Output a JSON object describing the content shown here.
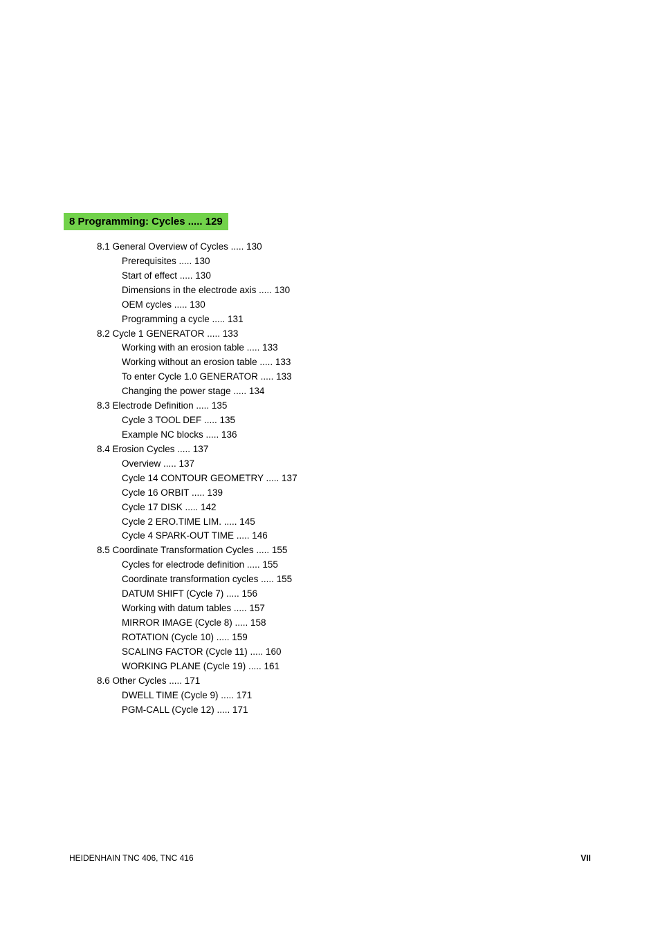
{
  "chapter": {
    "heading": "8 Programming: Cycles ..... 129",
    "heading_bg": "#72d24b",
    "heading_font_weight": "bold",
    "heading_font_size": 15
  },
  "body_font_size": 13.5,
  "body_color": "#000000",
  "background_color": "#ffffff",
  "sections": [
    {
      "title": "8.1 General Overview of Cycles ..... 130",
      "items": [
        "Prerequisites ..... 130",
        "Start of effect ..... 130",
        "Dimensions in the electrode axis ..... 130",
        "OEM cycles ..... 130",
        "Programming a cycle ..... 131"
      ]
    },
    {
      "title": "8.2 Cycle 1 GENERATOR ..... 133",
      "items": [
        "Working with an erosion table ..... 133",
        "Working without an erosion table ..... 133",
        "To enter Cycle 1.0 GENERATOR ..... 133",
        "Changing the power stage ..... 134"
      ]
    },
    {
      "title": "8.3 Electrode Definition ..... 135",
      "items": [
        "Cycle 3 TOOL DEF ..... 135",
        "Example NC blocks ..... 136"
      ]
    },
    {
      "title": "8.4 Erosion Cycles ..... 137",
      "items": [
        "Overview ..... 137",
        "Cycle 14 CONTOUR GEOMETRY ..... 137",
        "Cycle 16 ORBIT ..... 139",
        "Cycle 17 DISK ..... 142",
        "Cycle 2 ERO.TIME LIM. ..... 145",
        "Cycle 4 SPARK-OUT TIME ..... 146"
      ]
    },
    {
      "title": "8.5 Coordinate Transformation Cycles ..... 155",
      "items": [
        "Cycles for electrode definition ..... 155",
        "Coordinate transformation cycles ..... 155",
        "DATUM SHIFT (Cycle 7) ..... 156",
        "Working with datum tables ..... 157",
        "MIRROR IMAGE (Cycle 8) ..... 158",
        "ROTATION (Cycle 10) ..... 159",
        "SCALING FACTOR (Cycle 11) ..... 160",
        "WORKING PLANE (Cycle 19) ..... 161"
      ]
    },
    {
      "title": "8.6 Other Cycles ..... 171",
      "items": [
        "DWELL TIME (Cycle 9) ..... 171",
        "PGM-CALL (Cycle 12) ..... 171"
      ]
    }
  ],
  "footer": {
    "left": "HEIDENHAIN TNC 406, TNC 416",
    "right": "VII"
  }
}
